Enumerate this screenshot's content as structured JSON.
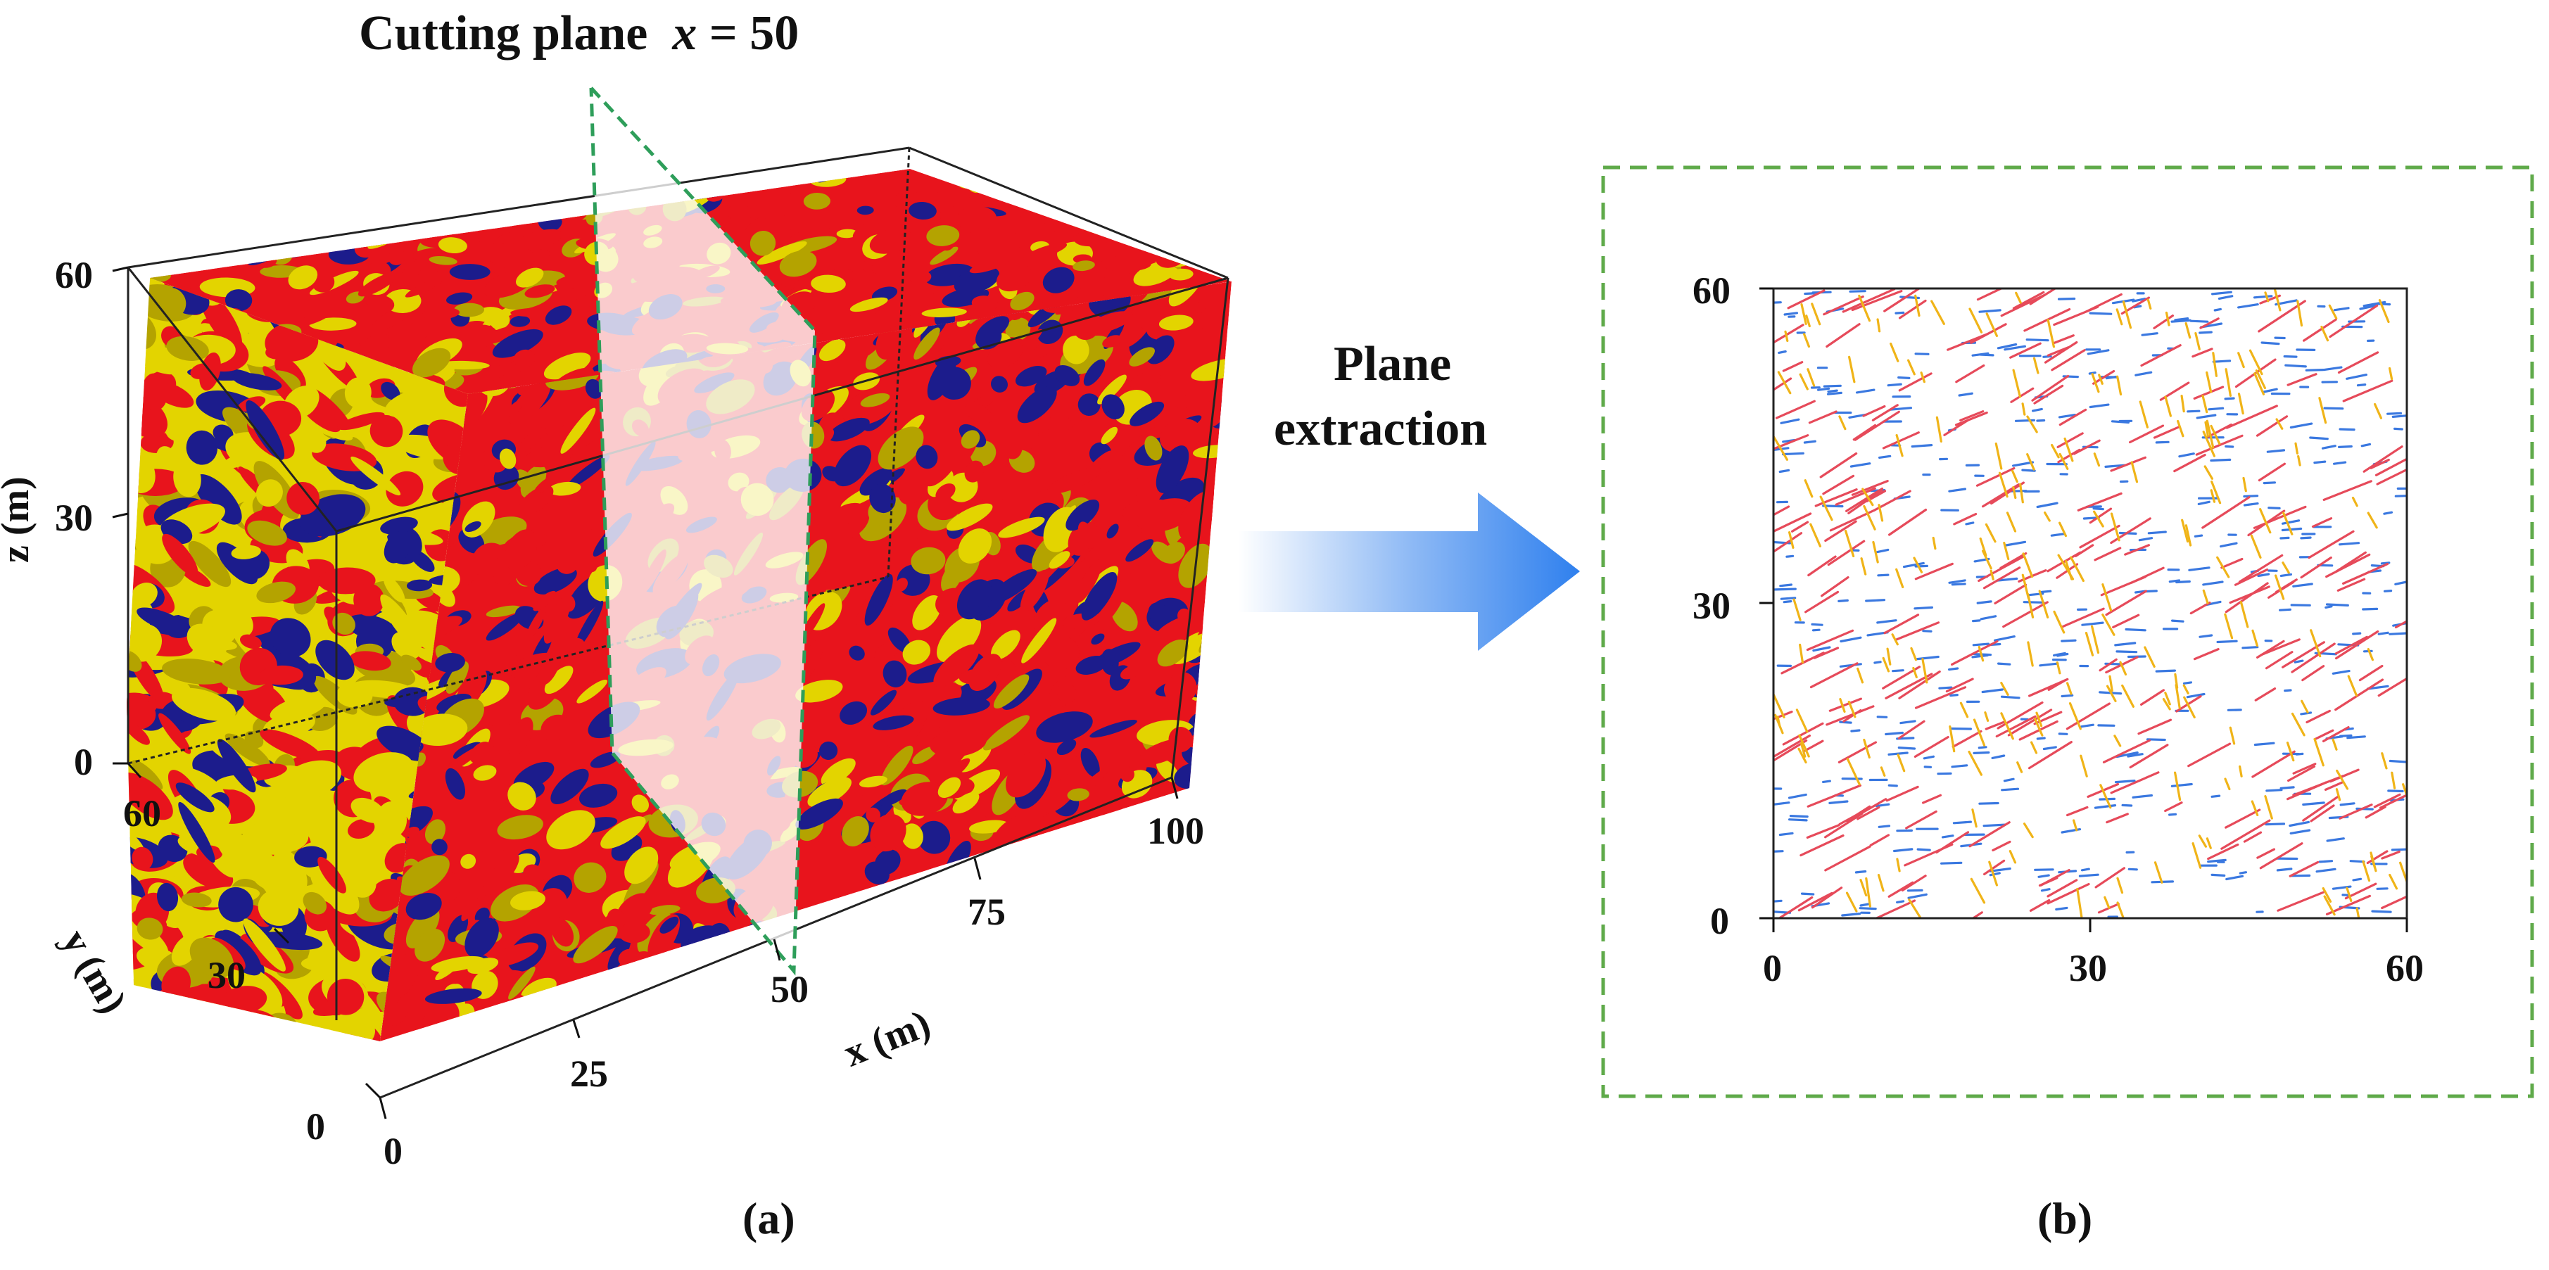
{
  "cutting_plane": {
    "prefix": "Cutting plane",
    "var": "x",
    "suffix": " = 50"
  },
  "panel_a": {
    "caption": "(a)",
    "z_label": "z (m)",
    "z_ticks": [
      "60",
      "30",
      "0"
    ],
    "y_label": "y (m)",
    "y_ticks": [
      "60",
      "30",
      "0"
    ],
    "x_label": "x (m)",
    "x_ticks": [
      "0",
      "25",
      "50",
      "75",
      "100"
    ]
  },
  "arrow_label": {
    "line1": "Plane",
    "line2": "extraction"
  },
  "panel_b": {
    "caption": "(b)",
    "y_ticks": [
      "60",
      "30",
      "0"
    ],
    "x_ticks": [
      "0",
      "30",
      "60"
    ]
  },
  "colors": {
    "red": "#e8141c",
    "yellow": "#e3d400",
    "dark_yellow": "#b4a300",
    "blue": "#1c1c8c",
    "trace_red": "#e64a5a",
    "trace_blue": "#3a78e0",
    "trace_yellow": "#f0b418",
    "frame_green": "#5faa4a",
    "plane_green": "#2e9e5a",
    "arrow_blue": "#2f80ee"
  }
}
